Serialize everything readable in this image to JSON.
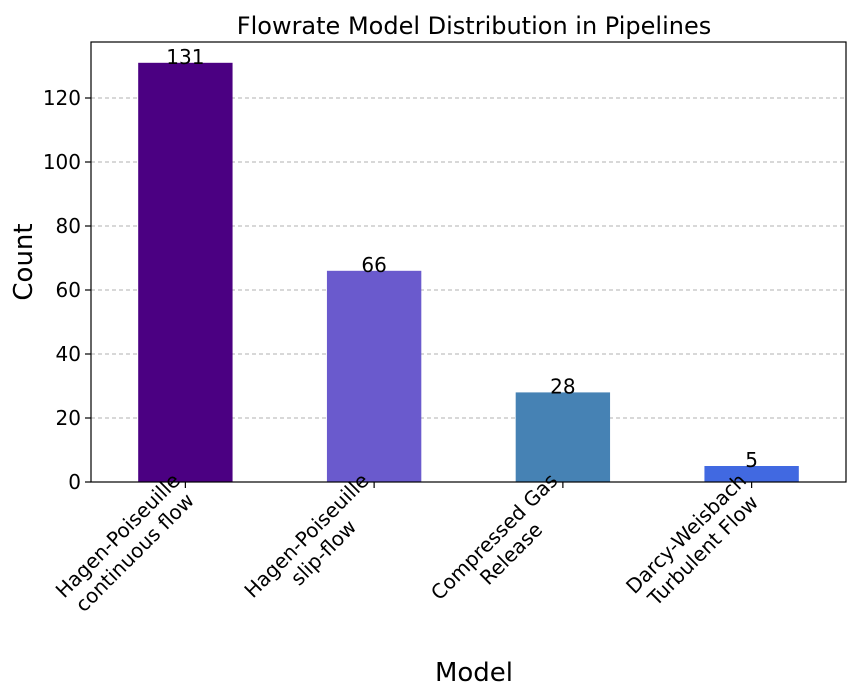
{
  "chart_data": {
    "type": "bar",
    "title": "Flowrate Model Distribution in Pipelines",
    "xlabel": "Model",
    "ylabel": "Count",
    "categories": [
      [
        "Hagen-Poiseuille",
        "continuous flow"
      ],
      [
        "Hagen-Poiseuille",
        "slip-flow"
      ],
      [
        "Compressed Gas",
        "Release"
      ],
      [
        "Darcy-Weisbach",
        "Turbulent Flow"
      ]
    ],
    "values": [
      131,
      66,
      28,
      5
    ],
    "data_labels": [
      "131",
      "66",
      "28",
      "5"
    ],
    "colors": [
      "#4b0082",
      "#6a5acd",
      "#4682b4",
      "#4169e1"
    ],
    "ylim": [
      0,
      137.5
    ],
    "yticks": [
      0,
      20,
      40,
      60,
      80,
      100,
      120
    ],
    "grid": "y-dashed",
    "legend": "none"
  }
}
